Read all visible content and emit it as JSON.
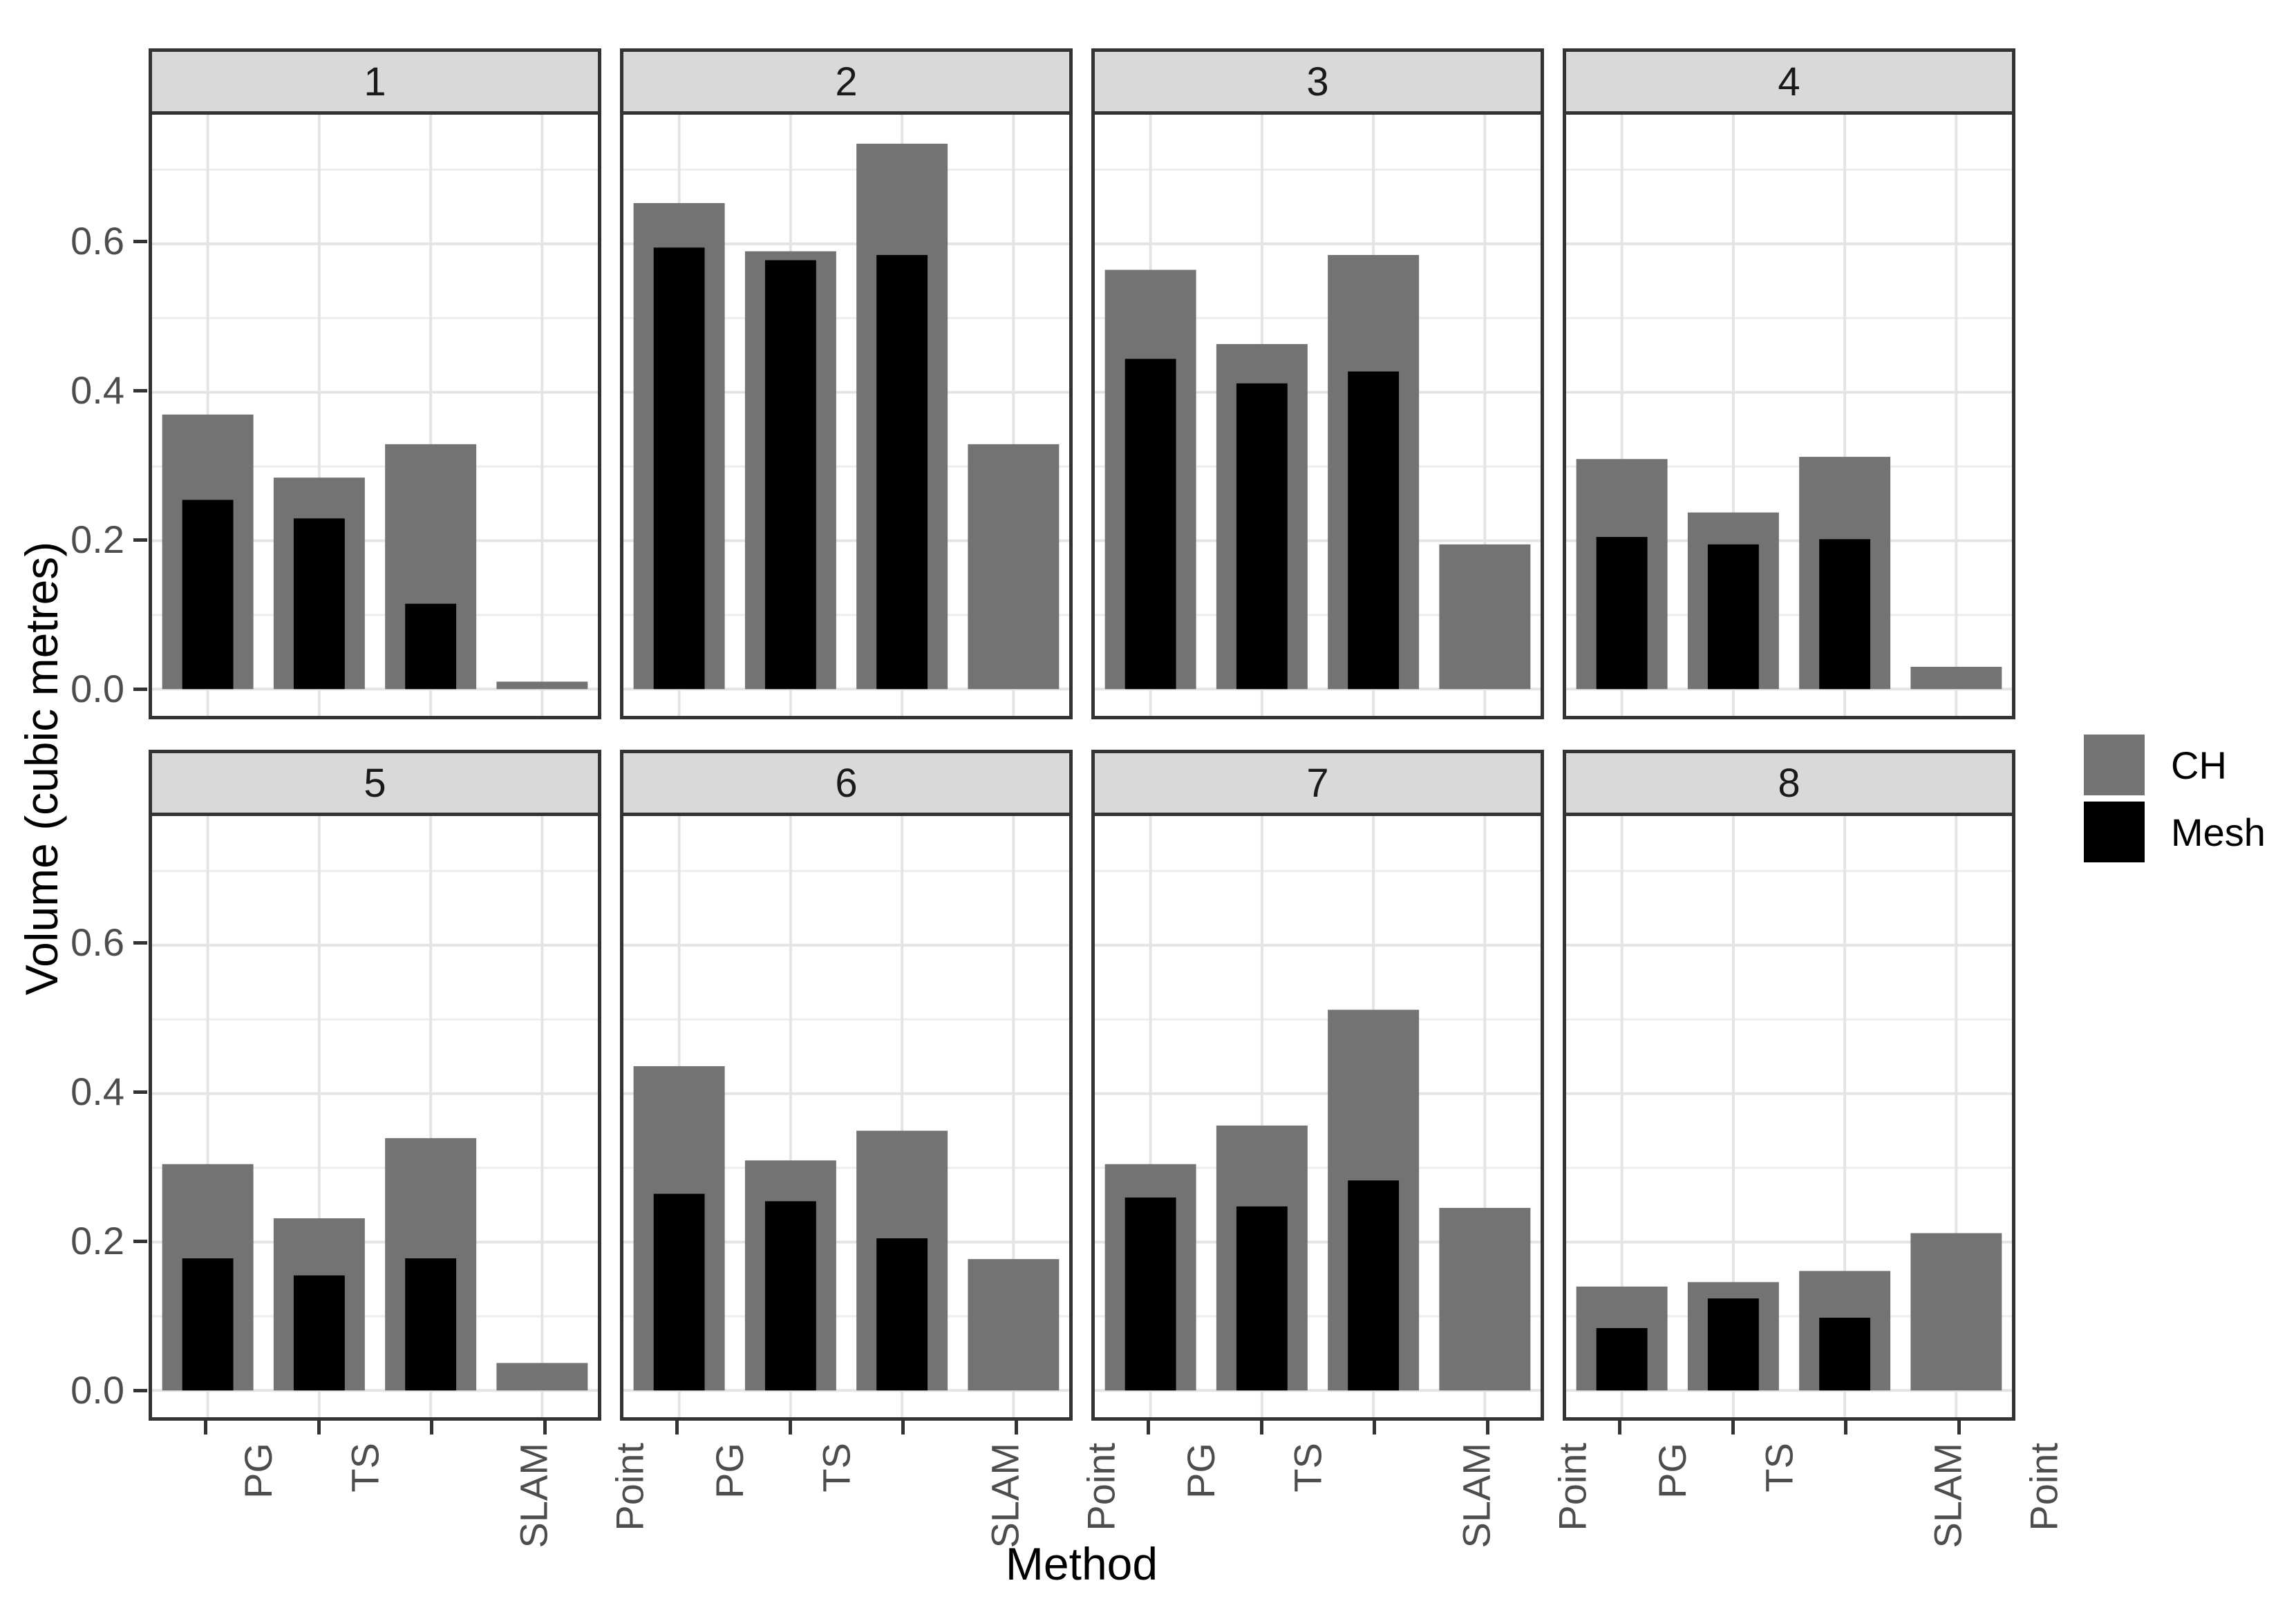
{
  "figure": {
    "background": "#ffffff",
    "panel_border_color": "#333333",
    "strip_background": "#d9d9d9",
    "grid_major_color": "#e4e4e4",
    "grid_minor_color": "#ededed",
    "tick_label_color": "#4d4d4d"
  },
  "axes": {
    "x_title": "Method",
    "y_title": "Volume (cubic metres)",
    "y_tick_labels": [
      "0.0",
      "0.2",
      "0.4",
      "0.6"
    ],
    "x_tick_labels": [
      "PG",
      "TS",
      "SLAM",
      "Point"
    ]
  },
  "legend": {
    "items": [
      {
        "label": "CH",
        "color": "#737373"
      },
      {
        "label": "Mesh",
        "color": "#000000"
      }
    ]
  },
  "chart_data": {
    "type": "bar",
    "title": "",
    "xlabel": "Method",
    "ylabel": "Volume (cubic metres)",
    "categories": [
      "PG",
      "TS",
      "SLAM",
      "Point"
    ],
    "y_ticks": [
      0.0,
      0.2,
      0.4,
      0.6
    ],
    "ylim": [
      0,
      0.775
    ],
    "grid": true,
    "legend_position": "right",
    "facet_labels": [
      "1",
      "2",
      "3",
      "4",
      "5",
      "6",
      "7",
      "8"
    ],
    "series_names": [
      "CH",
      "Mesh"
    ],
    "series_colors": {
      "CH": "#737373",
      "Mesh": "#000000"
    },
    "facets": [
      {
        "label": "1",
        "CH": [
          0.37,
          0.285,
          0.33,
          0.01
        ],
        "Mesh": [
          0.255,
          0.23,
          0.115,
          null
        ]
      },
      {
        "label": "2",
        "CH": [
          0.655,
          0.59,
          0.735,
          0.33
        ],
        "Mesh": [
          0.595,
          0.578,
          0.585,
          null
        ]
      },
      {
        "label": "3",
        "CH": [
          0.565,
          0.465,
          0.585,
          0.195
        ],
        "Mesh": [
          0.445,
          0.412,
          0.428,
          null
        ]
      },
      {
        "label": "4",
        "CH": [
          0.31,
          0.238,
          0.313,
          0.03
        ],
        "Mesh": [
          0.205,
          0.195,
          0.202,
          null
        ]
      },
      {
        "label": "5",
        "CH": [
          0.305,
          0.232,
          0.34,
          0.037
        ],
        "Mesh": [
          0.178,
          0.155,
          0.178,
          null
        ]
      },
      {
        "label": "6",
        "CH": [
          0.437,
          0.31,
          0.35,
          0.177
        ],
        "Mesh": [
          0.265,
          0.255,
          0.205,
          null
        ]
      },
      {
        "label": "7",
        "CH": [
          0.305,
          0.357,
          0.513,
          0.246
        ],
        "Mesh": [
          0.26,
          0.248,
          0.283,
          null
        ]
      },
      {
        "label": "8",
        "CH": [
          0.14,
          0.146,
          0.161,
          0.212
        ],
        "Mesh": [
          0.084,
          0.124,
          0.098,
          null
        ]
      }
    ]
  },
  "layout_note": "faceted bar chart"
}
